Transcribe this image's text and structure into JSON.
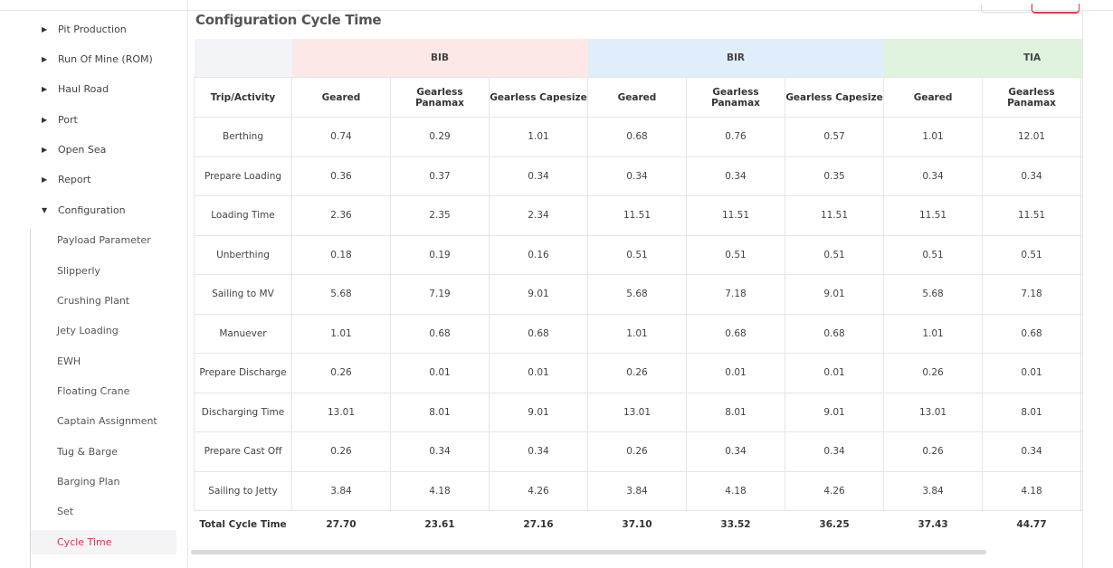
{
  "sidebar": {
    "items": [
      {
        "label": "Pit Production",
        "expanded": false
      },
      {
        "label": "Run Of Mine (ROM)",
        "expanded": false
      },
      {
        "label": "Haul Road",
        "expanded": false
      },
      {
        "label": "Port",
        "expanded": false
      },
      {
        "label": "Open Sea",
        "expanded": false
      },
      {
        "label": "Report",
        "expanded": false
      },
      {
        "label": "Configuration",
        "expanded": true
      }
    ],
    "sub_items": [
      "Payload Parameter",
      "Slipperly",
      "Crushing Plant",
      "Jety Loading",
      "EWH",
      "Floating Crane",
      "Captain Assignment",
      "Tug & Barge",
      "Barging Plan",
      "Set",
      "Cycle Time"
    ],
    "active_sub_item": "Cycle Time"
  },
  "main": {
    "title": "Configuration Cycle Time",
    "groups": [
      "BIB",
      "BIR",
      "TIA"
    ],
    "columns": [
      "Trip/Activity",
      "Geared",
      "Gearless Panamax",
      "Gearless Capesize",
      "Geared",
      "Gearless Panamax",
      "Gearless Capesize",
      "Geared",
      "Gearless Panamax"
    ],
    "rows": [
      [
        "Berthing",
        "0.74",
        "0.29",
        "1.01",
        "0.68",
        "0.76",
        "0.57",
        "1.01",
        "12.01"
      ],
      [
        "Prepare Loading",
        "0.36",
        "0.37",
        "0.34",
        "0.34",
        "0.34",
        "0.35",
        "0.34",
        "0.34"
      ],
      [
        "Loading Time",
        "2.36",
        "2.35",
        "2.34",
        "11.51",
        "11.51",
        "11.51",
        "11.51",
        "11.51"
      ],
      [
        "Unberthing",
        "0.18",
        "0.19",
        "0.16",
        "0.51",
        "0.51",
        "0.51",
        "0.51",
        "0.51"
      ],
      [
        "Sailing to MV",
        "5.68",
        "7.19",
        "9.01",
        "5.68",
        "7.18",
        "9.01",
        "5.68",
        "7.18"
      ],
      [
        "Manuever",
        "1.01",
        "0.68",
        "0.68",
        "1.01",
        "0.68",
        "0.68",
        "1.01",
        "0.68"
      ],
      [
        "Prepare Discharge",
        "0.26",
        "0.01",
        "0.01",
        "0.26",
        "0.01",
        "0.01",
        "0.26",
        "0.01"
      ],
      [
        "Discharging Time",
        "13.01",
        "8.01",
        "9.01",
        "13.01",
        "8.01",
        "9.01",
        "13.01",
        "8.01"
      ],
      [
        "Prepare Cast Off",
        "0.26",
        "0.34",
        "0.34",
        "0.26",
        "0.34",
        "0.34",
        "0.26",
        "0.34"
      ],
      [
        "Sailing to Jetty",
        "3.84",
        "4.18",
        "4.26",
        "3.84",
        "4.18",
        "4.26",
        "3.84",
        "4.18"
      ]
    ],
    "total": [
      "Total Cycle Time",
      "27.70",
      "23.61",
      "27.16",
      "37.10",
      "33.52",
      "36.25",
      "37.43",
      "44.77"
    ]
  },
  "colors": {
    "accent": "#e5304a",
    "bib_bg": "#fde8e8",
    "bir_bg": "#e0edfa",
    "tia_bg": "#dff3df"
  }
}
